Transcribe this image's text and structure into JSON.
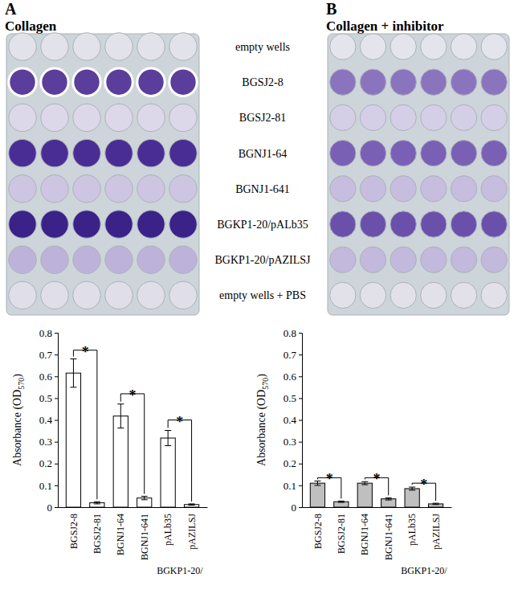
{
  "panels": [
    {
      "letter": "A",
      "title": "Collagen"
    },
    {
      "letter": "B",
      "title": "Collagen + inhibitor"
    }
  ],
  "plate_rows": [
    "empty wells",
    "BGSJ2-8",
    "BGSJ2-81",
    "BGNJ1-64",
    "BGNJ1-641",
    "BGKP1-20/pALb35",
    "BGKP1-20/pAZILSJ",
    "empty wells + PBS"
  ],
  "chart_data": [
    {
      "type": "bar",
      "categories": [
        "BGSJ2-8",
        "BGSJ2-81",
        "BGNJ1-64",
        "BGNJ1-641",
        "pALb35",
        "pAZILSJ"
      ],
      "values": [
        0.615,
        0.02,
        0.418,
        0.042,
        0.317,
        0.012
      ],
      "errors": [
        0.065,
        0.005,
        0.055,
        0.008,
        0.035,
        0.003
      ],
      "color": "#ffffff",
      "ylim": [
        0,
        0.8
      ],
      "yticks": [
        0,
        0.1,
        0.2,
        0.3,
        0.4,
        0.5,
        0.6,
        0.7,
        0.8
      ],
      "y_label": "Absorbance (OD570)",
      "group_labels": [
        {
          "text": "BGKP1-20/",
          "categories": [
            4,
            5
          ]
        }
      ],
      "annotations": [
        {
          "text": "*",
          "from": 0,
          "to": 1,
          "y": 0.72
        },
        {
          "text": "*",
          "from": 2,
          "to": 3,
          "y": 0.52
        },
        {
          "text": "*",
          "from": 4,
          "to": 5,
          "y": 0.4
        }
      ]
    },
    {
      "type": "bar",
      "categories": [
        "BGSJ2-8",
        "BGSJ2-81",
        "BGNJ1-64",
        "BGNJ1-641",
        "pALb35",
        "pAZILSJ"
      ],
      "values": [
        0.11,
        0.025,
        0.11,
        0.038,
        0.085,
        0.015
      ],
      "errors": [
        0.01,
        0.003,
        0.007,
        0.005,
        0.007,
        0.003
      ],
      "color": "#bfbfbf",
      "ylim": [
        0,
        0.8
      ],
      "yticks": [
        0,
        0.1,
        0.2,
        0.3,
        0.4,
        0.5,
        0.6,
        0.7,
        0.8
      ],
      "y_label": "Absorbance (OD570)",
      "group_labels": [
        {
          "text": "BGKP1-20/",
          "categories": [
            4,
            5
          ]
        }
      ],
      "annotations": [
        {
          "text": "*",
          "from": 0,
          "to": 1,
          "y": 0.135
        },
        {
          "text": "*",
          "from": 2,
          "to": 3,
          "y": 0.135
        },
        {
          "text": "*",
          "from": 4,
          "to": 5,
          "y": 0.11
        }
      ]
    }
  ]
}
